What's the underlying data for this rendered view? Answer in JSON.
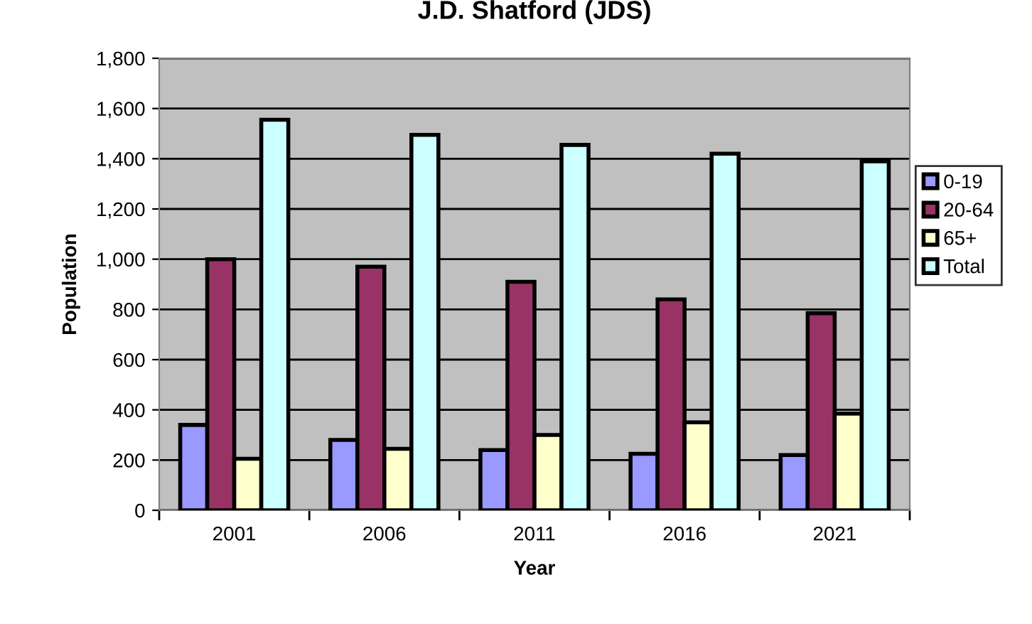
{
  "chart_data": {
    "type": "bar",
    "title": "J.D. Shatford (JDS)",
    "xlabel": "Year",
    "ylabel": "Population",
    "categories": [
      "2001",
      "2006",
      "2011",
      "2016",
      "2021"
    ],
    "series": [
      {
        "name": "0-19",
        "color": "#9999ff",
        "values": [
          340,
          280,
          240,
          225,
          220
        ]
      },
      {
        "name": "20-64",
        "color": "#993366",
        "values": [
          1000,
          970,
          910,
          840,
          785
        ]
      },
      {
        "name": "65+",
        "color": "#ffffcc",
        "values": [
          205,
          245,
          300,
          350,
          385
        ]
      },
      {
        "name": "Total",
        "color": "#ccffff",
        "values": [
          1555,
          1495,
          1455,
          1420,
          1390
        ]
      }
    ],
    "ylim": [
      0,
      1800
    ],
    "yticks": [
      0,
      {
        "value": 200,
        "label": "200"
      },
      {
        "value": 400,
        "label": "400"
      },
      {
        "value": 600,
        "label": "600"
      },
      {
        "value": 800,
        "label": "800"
      },
      {
        "value": 1000,
        "label": "1,000"
      },
      {
        "value": 1200,
        "label": "1,200"
      },
      {
        "value": 1400,
        "label": "1,400"
      },
      {
        "value": 1600,
        "label": "1,600"
      },
      {
        "value": 1800,
        "label": "1,800"
      }
    ],
    "grid": "y",
    "legend": "right"
  }
}
